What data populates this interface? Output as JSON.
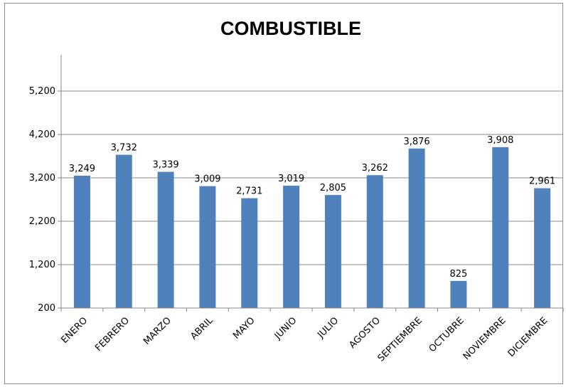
{
  "chart_data": {
    "type": "bar",
    "title": "COMBUSTIBLE",
    "xlabel": "",
    "ylabel": "",
    "categories": [
      "ENERO",
      "FEBRERO",
      "MARZO",
      "ABRIL",
      "MAYO",
      "JUNIO",
      "JULIO",
      "AGOSTO",
      "SEPTIEMBRE",
      "OCTUBRE",
      "NOVIEMBRE",
      "DICIEMBRE"
    ],
    "values": [
      3249,
      3732,
      3339,
      3009,
      2731,
      3019,
      2805,
      3262,
      3876,
      825,
      3908,
      2961
    ],
    "value_labels": [
      "3,249",
      "3,732",
      "3,339",
      "3,009",
      "2,731",
      "3,019",
      "2,805",
      "3,262",
      "3,876",
      "825",
      "3,908",
      "2,961"
    ],
    "ylim": [
      200,
      6200
    ],
    "yticks": [
      200,
      1200,
      2200,
      3200,
      4200,
      5200
    ],
    "ytick_labels": [
      "200",
      "1,200",
      "2,200",
      "3,200",
      "4,200",
      "5,200"
    ],
    "grid": true,
    "legend": "none",
    "bar_color": "#4f81bd"
  }
}
